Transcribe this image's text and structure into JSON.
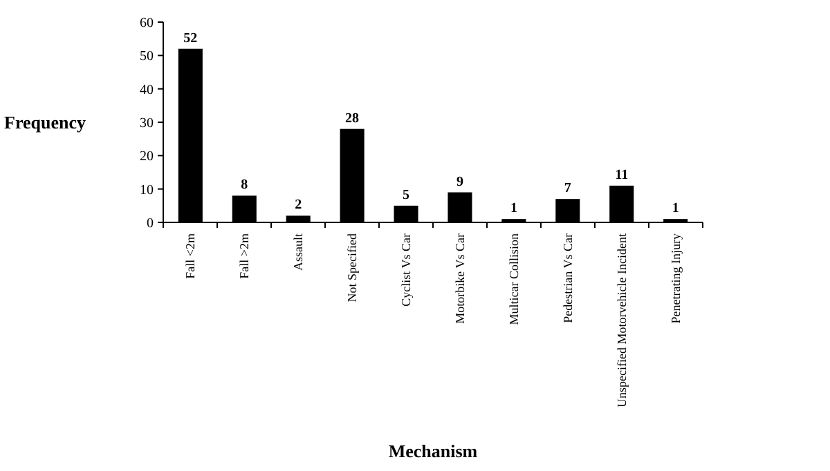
{
  "chart_data": {
    "type": "bar",
    "xlabel": "Mechanism",
    "ylabel": "Frequency",
    "categories": [
      "Fall <2m",
      "Fall >2m",
      "Assault",
      "Not Specified",
      "Cyclist Vs Car",
      "Motorbike Vs Car",
      "Multicar Collision",
      "Pedestrian Vs Car",
      "Unspecified Motorvehicle Incident",
      "Penetrating Injury"
    ],
    "values": [
      52,
      8,
      2,
      28,
      5,
      9,
      1,
      7,
      11,
      1
    ],
    "color": "#000000",
    "ylim": [
      0,
      60
    ],
    "yticks": [
      0,
      10,
      20,
      30,
      40,
      50,
      60
    ],
    "data_labels": true,
    "grid": false
  }
}
